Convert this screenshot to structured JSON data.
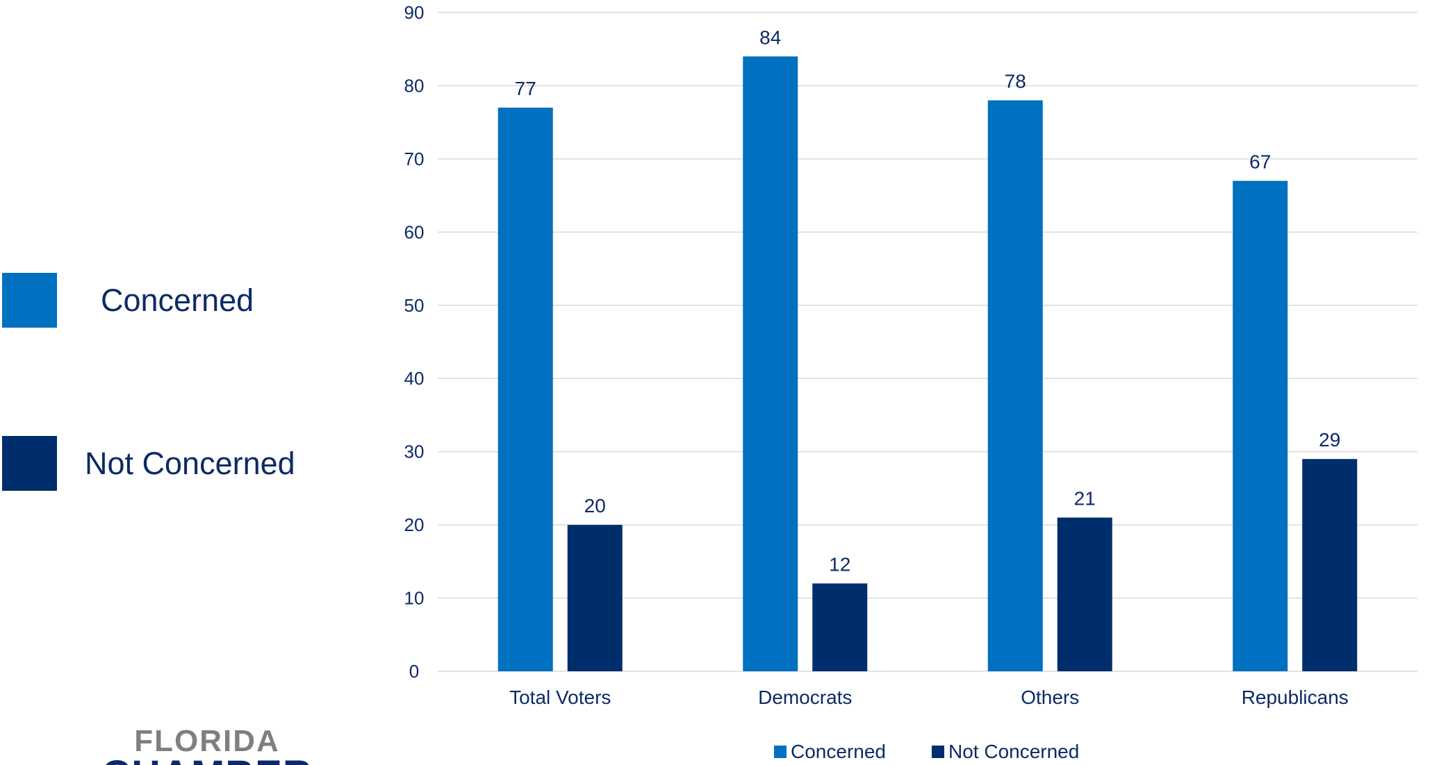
{
  "chart_data": {
    "type": "bar",
    "categories": [
      "Total Voters",
      "Democrats",
      "Others",
      "Republicans"
    ],
    "series": [
      {
        "name": "Concerned",
        "values": [
          77,
          84,
          78,
          67
        ],
        "color": "#0070c0"
      },
      {
        "name": "Not Concerned",
        "values": [
          20,
          12,
          21,
          29
        ],
        "color": "#002d6b"
      }
    ],
    "yticks": [
      "0",
      "10",
      "20",
      "30",
      "40",
      "50",
      "60",
      "70",
      "80",
      "90"
    ],
    "ylim": [
      0,
      90
    ],
    "grid": true,
    "data_labels": true,
    "legend_position": "bottom"
  },
  "side_legend": [
    {
      "label": "Concerned",
      "color": "#0070c0"
    },
    {
      "label": "Not Concerned",
      "color": "#002d6b"
    }
  ],
  "logo": {
    "lines": [
      "FLORIDA",
      "CHAMBER"
    ],
    "color": "#7f7f7f",
    "color_dark": "#0d2a66"
  }
}
